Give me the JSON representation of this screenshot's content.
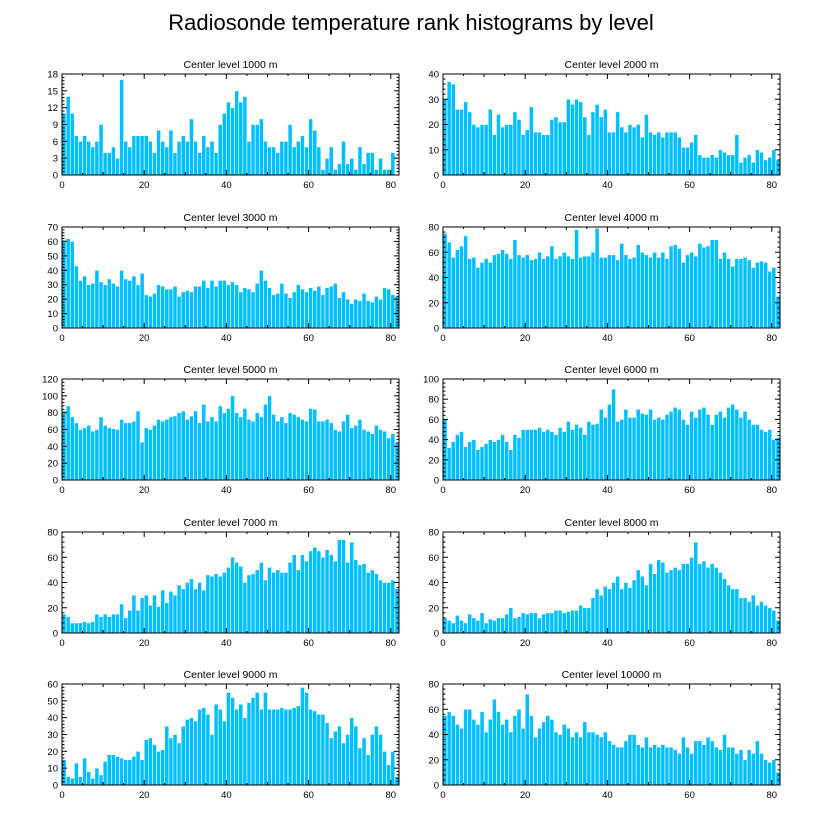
{
  "figure_title": "Radiosonde temperature rank histograms by level",
  "colors": {
    "bar": "#00BFFF",
    "bar_edge": "#FFFFFF",
    "axis": "#000000"
  },
  "chart_data": [
    {
      "type": "bar",
      "title": "Center level 1000 m",
      "xlabel": "",
      "ylabel": "",
      "xlim": [
        0,
        82
      ],
      "ylim": [
        0,
        18
      ],
      "xticks": [
        0,
        20,
        40,
        60,
        80
      ],
      "yticks": [
        0,
        3,
        6,
        9,
        12,
        15,
        18
      ],
      "values": [
        11,
        14,
        11,
        7,
        6,
        7,
        6,
        5,
        6,
        9,
        4,
        4,
        5,
        3,
        17,
        6,
        5,
        7,
        7,
        7,
        7,
        6,
        4,
        8,
        6,
        5,
        8,
        4,
        6,
        7,
        6,
        10,
        6,
        4,
        7,
        5,
        6,
        4,
        9,
        11,
        13,
        12,
        15,
        13,
        14,
        6,
        9,
        9,
        10,
        6,
        5,
        5,
        4,
        6,
        6,
        9,
        5,
        6,
        7,
        5,
        10,
        8,
        5,
        1,
        3,
        5,
        1,
        2,
        6,
        2,
        3,
        1,
        5,
        2,
        4,
        4,
        1,
        3,
        1,
        1,
        4
      ]
    },
    {
      "type": "bar",
      "title": "Center level 2000 m",
      "xlabel": "",
      "ylabel": "",
      "xlim": [
        0,
        82
      ],
      "ylim": [
        0,
        40
      ],
      "xticks": [
        0,
        20,
        40,
        60,
        80
      ],
      "yticks": [
        0,
        10,
        20,
        30,
        40
      ],
      "values": [
        30,
        37,
        36,
        26,
        26,
        29,
        25,
        20,
        19,
        20,
        20,
        26,
        16,
        24,
        19,
        20,
        20,
        25,
        22,
        16,
        18,
        27,
        17,
        17,
        16,
        16,
        22,
        23,
        21,
        21,
        30,
        28,
        30,
        29,
        23,
        16,
        25,
        28,
        23,
        26,
        17,
        17,
        25,
        19,
        17,
        20,
        19,
        20,
        15,
        24,
        17,
        16,
        17,
        15,
        17,
        17,
        17,
        15,
        11,
        11,
        13,
        16,
        8,
        7,
        7,
        8,
        7,
        10,
        9,
        8,
        8,
        16,
        5,
        7,
        8,
        5,
        10,
        9,
        6,
        7,
        10,
        6
      ]
    },
    {
      "type": "bar",
      "title": "Center level 3000 m",
      "xlabel": "",
      "ylabel": "",
      "xlim": [
        0,
        82
      ],
      "ylim": [
        0,
        70
      ],
      "xticks": [
        0,
        20,
        40,
        60,
        80
      ],
      "yticks": [
        0,
        10,
        20,
        30,
        40,
        50,
        60,
        70
      ],
      "values": [
        61,
        62,
        60,
        43,
        33,
        36,
        30,
        31,
        40,
        32,
        30,
        34,
        31,
        29,
        40,
        34,
        33,
        36,
        30,
        38,
        23,
        22,
        24,
        30,
        29,
        27,
        27,
        29,
        22,
        25,
        26,
        25,
        29,
        29,
        33,
        28,
        33,
        29,
        33,
        33,
        30,
        32,
        30,
        25,
        28,
        27,
        25,
        31,
        40,
        33,
        28,
        23,
        24,
        31,
        24,
        21,
        25,
        30,
        27,
        25,
        28,
        26,
        29,
        23,
        28,
        29,
        31,
        21,
        25,
        20,
        17,
        20,
        19,
        24,
        19,
        18,
        22,
        20,
        28,
        27,
        23,
        22
      ]
    },
    {
      "type": "bar",
      "title": "Center level 4000 m",
      "xlabel": "",
      "ylabel": "",
      "xlim": [
        0,
        82
      ],
      "ylim": [
        0,
        80
      ],
      "xticks": [
        0,
        20,
        40,
        60,
        80
      ],
      "yticks": [
        0,
        20,
        40,
        60,
        80
      ],
      "values": [
        75,
        68,
        56,
        62,
        65,
        73,
        55,
        56,
        48,
        52,
        55,
        52,
        58,
        59,
        62,
        59,
        55,
        70,
        58,
        56,
        58,
        54,
        55,
        60,
        55,
        57,
        65,
        55,
        57,
        60,
        57,
        55,
        78,
        56,
        57,
        57,
        60,
        79,
        56,
        56,
        58,
        58,
        54,
        67,
        58,
        55,
        56,
        66,
        60,
        58,
        56,
        60,
        56,
        60,
        55,
        65,
        66,
        63,
        52,
        58,
        60,
        57,
        67,
        64,
        65,
        70,
        70,
        55,
        60,
        55,
        49,
        55,
        55,
        56,
        54,
        48,
        52,
        53,
        52,
        45,
        48,
        25
      ]
    },
    {
      "type": "bar",
      "title": "Center level 5000 m",
      "xlabel": "",
      "ylabel": "",
      "xlim": [
        0,
        82
      ],
      "ylim": [
        0,
        120
      ],
      "xticks": [
        0,
        20,
        40,
        60,
        80
      ],
      "yticks": [
        0,
        20,
        40,
        60,
        80,
        100,
        120
      ],
      "values": [
        82,
        88,
        75,
        68,
        60,
        62,
        65,
        58,
        60,
        75,
        65,
        62,
        61,
        60,
        72,
        68,
        68,
        70,
        82,
        45,
        62,
        60,
        65,
        72,
        70,
        72,
        75,
        76,
        80,
        82,
        72,
        76,
        82,
        68,
        90,
        70,
        75,
        70,
        88,
        80,
        85,
        100,
        80,
        75,
        85,
        72,
        70,
        80,
        75,
        90,
        100,
        78,
        70,
        75,
        68,
        80,
        78,
        75,
        72,
        70,
        85,
        84,
        70,
        70,
        72,
        68,
        60,
        58,
        70,
        78,
        62,
        65,
        72,
        60,
        58,
        55,
        65,
        60,
        58,
        50,
        55,
        45
      ]
    },
    {
      "type": "bar",
      "title": "Center level 6000 m",
      "xlabel": "",
      "ylabel": "",
      "xlim": [
        0,
        82
      ],
      "ylim": [
        0,
        100
      ],
      "xticks": [
        0,
        20,
        40,
        60,
        80
      ],
      "yticks": [
        0,
        20,
        40,
        60,
        80,
        100
      ],
      "values": [
        60,
        32,
        38,
        45,
        48,
        33,
        38,
        40,
        30,
        33,
        36,
        40,
        38,
        40,
        45,
        38,
        30,
        45,
        42,
        50,
        50,
        50,
        50,
        52,
        48,
        50,
        48,
        45,
        52,
        48,
        58,
        50,
        55,
        52,
        45,
        58,
        55,
        56,
        70,
        62,
        75,
        90,
        58,
        60,
        70,
        62,
        62,
        70,
        66,
        65,
        70,
        60,
        62,
        60,
        65,
        68,
        72,
        70,
        60,
        55,
        68,
        62,
        70,
        72,
        65,
        55,
        65,
        68,
        62,
        72,
        75,
        70,
        62,
        68,
        60,
        55,
        55,
        50,
        48,
        50,
        40,
        42
      ]
    },
    {
      "type": "bar",
      "title": "Center level 7000 m",
      "xlabel": "",
      "ylabel": "",
      "xlim": [
        0,
        82
      ],
      "ylim": [
        0,
        80
      ],
      "xticks": [
        0,
        20,
        40,
        60,
        80
      ],
      "yticks": [
        0,
        20,
        40,
        60,
        80
      ],
      "values": [
        15,
        13,
        8,
        8,
        8,
        9,
        8,
        9,
        15,
        13,
        15,
        13,
        15,
        15,
        23,
        12,
        18,
        30,
        18,
        28,
        30,
        22,
        30,
        21,
        34,
        24,
        33,
        30,
        38,
        35,
        40,
        43,
        35,
        40,
        34,
        46,
        45,
        47,
        45,
        48,
        52,
        60,
        56,
        53,
        40,
        46,
        47,
        50,
        56,
        42,
        52,
        48,
        50,
        48,
        48,
        56,
        62,
        50,
        62,
        57,
        65,
        68,
        65,
        60,
        66,
        62,
        57,
        74,
        74,
        56,
        72,
        58,
        54,
        55,
        48,
        50,
        47,
        42,
        40,
        40,
        42,
        35
      ]
    },
    {
      "type": "bar",
      "title": "Center level 8000 m",
      "xlabel": "",
      "ylabel": "",
      "xlim": [
        0,
        82
      ],
      "ylim": [
        0,
        80
      ],
      "xticks": [
        0,
        20,
        40,
        60,
        80
      ],
      "yticks": [
        0,
        20,
        40,
        60,
        80
      ],
      "values": [
        12,
        10,
        8,
        14,
        10,
        8,
        15,
        12,
        10,
        16,
        8,
        11,
        10,
        12,
        12,
        15,
        20,
        12,
        13,
        16,
        15,
        16,
        16,
        12,
        15,
        16,
        16,
        18,
        18,
        16,
        17,
        18,
        18,
        22,
        20,
        20,
        28,
        35,
        30,
        37,
        35,
        40,
        45,
        35,
        40,
        36,
        42,
        50,
        45,
        38,
        55,
        47,
        58,
        56,
        48,
        50,
        52,
        50,
        55,
        55,
        60,
        72,
        55,
        57,
        52,
        55,
        52,
        48,
        43,
        38,
        35,
        35,
        28,
        28,
        25,
        30,
        22,
        25,
        22,
        20,
        18,
        10
      ]
    },
    {
      "type": "bar",
      "title": "Center level 9000 m",
      "xlabel": "",
      "ylabel": "",
      "xlim": [
        0,
        82
      ],
      "ylim": [
        0,
        60
      ],
      "xticks": [
        0,
        20,
        40,
        60,
        80
      ],
      "yticks": [
        0,
        10,
        20,
        30,
        40,
        50,
        60
      ],
      "values": [
        15,
        5,
        4,
        13,
        5,
        16,
        8,
        4,
        10,
        6,
        14,
        18,
        18,
        17,
        16,
        15,
        15,
        17,
        20,
        15,
        27,
        28,
        24,
        20,
        21,
        35,
        28,
        30,
        25,
        35,
        39,
        40,
        38,
        45,
        46,
        42,
        30,
        48,
        45,
        38,
        55,
        52,
        45,
        48,
        40,
        49,
        52,
        55,
        45,
        55,
        45,
        45,
        45,
        46,
        45,
        45,
        46,
        47,
        58,
        55,
        45,
        44,
        42,
        42,
        37,
        28,
        32,
        35,
        25,
        30,
        40,
        35,
        22,
        28,
        18,
        30,
        35,
        30,
        20,
        12,
        20,
        5
      ]
    },
    {
      "type": "bar",
      "title": "Center level 10000 m",
      "xlabel": "",
      "ylabel": "",
      "xlim": [
        0,
        82
      ],
      "ylim": [
        0,
        80
      ],
      "xticks": [
        0,
        20,
        40,
        60,
        80
      ],
      "yticks": [
        0,
        20,
        40,
        60,
        80
      ],
      "values": [
        55,
        58,
        55,
        48,
        45,
        60,
        60,
        52,
        48,
        58,
        42,
        52,
        68,
        58,
        48,
        52,
        42,
        55,
        60,
        45,
        72,
        55,
        38,
        45,
        50,
        55,
        52,
        42,
        40,
        48,
        45,
        38,
        42,
        38,
        50,
        42,
        42,
        40,
        38,
        42,
        35,
        32,
        30,
        30,
        35,
        40,
        40,
        32,
        30,
        38,
        30,
        32,
        30,
        32,
        30,
        30,
        28,
        25,
        38,
        30,
        25,
        35,
        35,
        32,
        38,
        35,
        30,
        28,
        40,
        30,
        30,
        25,
        28,
        20,
        28,
        25,
        35,
        25,
        20,
        18,
        20,
        10
      ]
    }
  ]
}
